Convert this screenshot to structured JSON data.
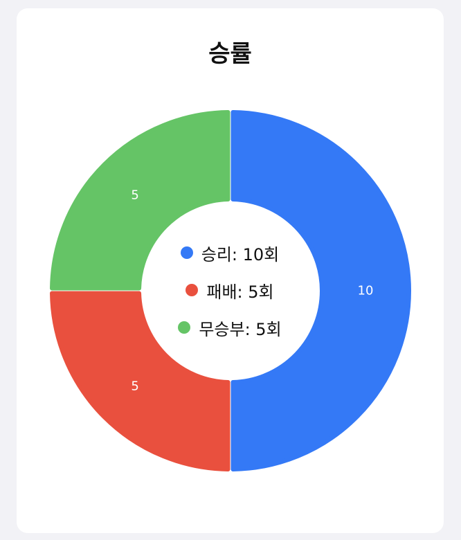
{
  "chart_data": {
    "type": "pie",
    "title": "승률",
    "categories": [
      "승리",
      "패배",
      "무승부"
    ],
    "values": [
      10,
      5,
      5
    ],
    "colors": [
      "#3479f6",
      "#e9503e",
      "#65c466"
    ],
    "legend_placement": "center"
  },
  "legend": [
    {
      "text": "승리: 10회",
      "color": "#3479f6"
    },
    {
      "text": "패배: 5회",
      "color": "#e9503e"
    },
    {
      "text": "무승부: 5회",
      "color": "#65c466"
    }
  ]
}
